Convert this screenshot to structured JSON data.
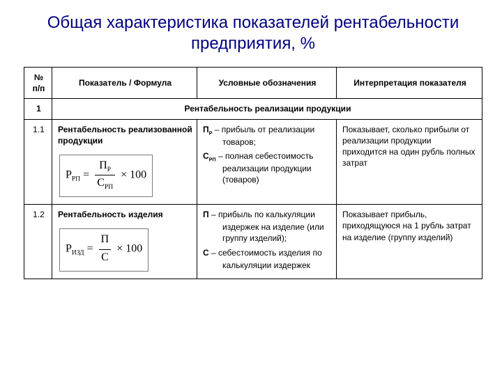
{
  "title": "Общая характеристика показателей рентабельности предприятия, %",
  "headers": {
    "num": "№ п/п",
    "indicator": "Показатель / Формула",
    "symbols": "Условные обозначения",
    "interpretation": "Интерпретация показателя"
  },
  "section": {
    "num": "1",
    "label": "Рентабельность реализации продукции"
  },
  "rows": [
    {
      "num": "1.1",
      "indicator_name": "Рентабельность реализованной продукции",
      "formula": {
        "lhs": "Р",
        "lhs_sub": "РП",
        "num": "П",
        "num_sub": "Р",
        "den": "С",
        "den_sub": "РП",
        "times100": "× 100"
      },
      "symbols": [
        {
          "sym": "П",
          "sub": "Р",
          "text": " – прибыль от реализации товаров;"
        },
        {
          "sym": "С",
          "sub": "РП",
          "text": " – полная себестоимость реализации продукции (товаров)"
        }
      ],
      "interpretation": "Показывает, сколько прибыли от реализации продукции приходится на один рубль полных затрат"
    },
    {
      "num": "1.2",
      "indicator_name": "Рентабельность изделия",
      "formula": {
        "lhs": "Р",
        "lhs_sub": "ИЗД",
        "num": "П",
        "num_sub": "",
        "den": "С",
        "den_sub": "",
        "times100": "× 100"
      },
      "symbols": [
        {
          "sym": "П",
          "sub": "",
          "text": " – прибыль по калькуляции издержек на изделие (или группу изделий);"
        },
        {
          "sym": "С",
          "sub": "",
          "text": " – себестоимость изделия по калькуляции издержек"
        }
      ],
      "interpretation": "Показывает прибыль, приходящуюся на 1 рубль затрат на изделие (группу изделий)"
    }
  ],
  "style": {
    "title_color": "#000080",
    "border_color": "#000000",
    "formula_border": "#7a7a7a",
    "bg": "#ffffff",
    "font_body": 12,
    "font_title": 24
  }
}
